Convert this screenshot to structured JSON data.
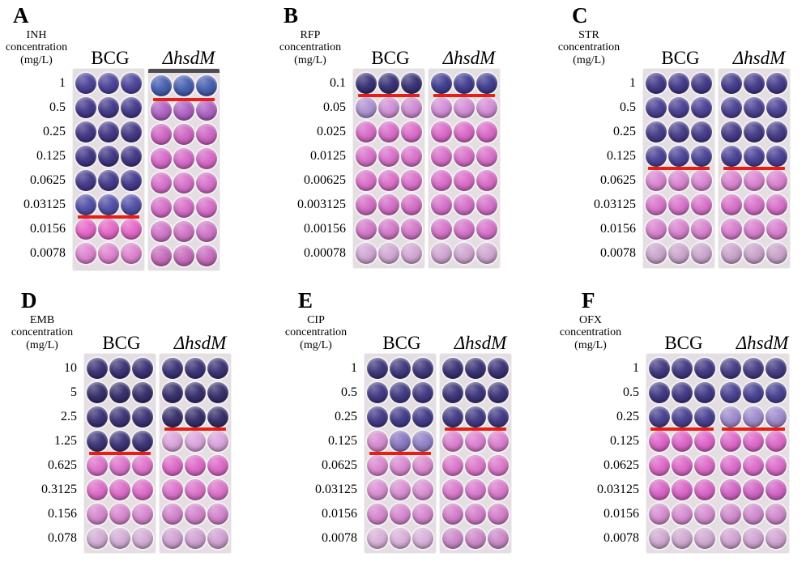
{
  "figure": {
    "type": "microplate-mic-assay",
    "strain_header_left": "BCG",
    "strain_header_right": "ΔhsdM",
    "colors": {
      "mic_line": "#e81d15",
      "plate_background": "#e4dee3",
      "page_background": "#ffffff",
      "text": "#000000",
      "well_rim": "#f2eef1"
    },
    "rows_per_plate": 8,
    "wells_per_row_per_strain": 3
  },
  "panels": [
    {
      "letter": "A",
      "drug": "INH",
      "label_lines": [
        "INH",
        "concentration",
        "(mg/L)"
      ],
      "concentrations": [
        "1",
        "0.5",
        "0.25",
        "0.125",
        "0.0625",
        "0.03125",
        "0.0156",
        "0.0078"
      ],
      "single_plate": false,
      "strains": [
        {
          "name": "BCG",
          "italic": false,
          "mic_line_after_row": 6,
          "rows": [
            "#453c96",
            "#3e3287",
            "#3c2f82",
            "#3a2e80",
            "#3e3388",
            "#4b49a4",
            "#e361c4",
            "#dd7ecd"
          ]
        },
        {
          "name": "ΔhsdM",
          "italic": true,
          "mic_line_after_row": 1,
          "dark_top_edge": true,
          "rows": [
            "#3f58ac",
            "#ac5cc0",
            "#cd5fc0",
            "#d563c6",
            "#d56ac8",
            "#d568c6",
            "#ce6fc4",
            "#c566ba"
          ]
        }
      ]
    },
    {
      "letter": "B",
      "drug": "RFP",
      "label_lines": [
        "RFP",
        "concentration",
        "(mg/L)"
      ],
      "concentrations": [
        "0.1",
        "0.05",
        "0.025",
        "0.0125",
        "0.00625",
        "0.003125",
        "0.00156",
        "0.00078"
      ],
      "single_plate": false,
      "strains": [
        {
          "name": "BCG",
          "italic": false,
          "mic_line_after_row": 1,
          "rows": [
            "#2f296f",
            [
              "#a98fd0",
              "#cd8bd2",
              "#cc87d0"
            ],
            "#d766c6",
            "#d76cc8",
            "#d96ac7",
            "#d268c4",
            "#d173c6",
            "#cfa3d2"
          ]
        },
        {
          "name": "ΔhsdM",
          "italic": true,
          "mic_line_after_row": 1,
          "rows": [
            "#39368c",
            "#d189d4",
            "#d863c5",
            "#d76ac7",
            "#d867c6",
            "#d46bc7",
            "#d46ec8",
            "#cda2cf"
          ]
        }
      ]
    },
    {
      "letter": "C",
      "drug": "STR",
      "label_lines": [
        "STR",
        "concentration",
        "(mg/L)"
      ],
      "concentrations": [
        "1",
        "0.5",
        "0.25",
        "0.125",
        "0.0625",
        "0.03125",
        "0.0156",
        "0.0078"
      ],
      "single_plate": false,
      "strains": [
        {
          "name": "BCG",
          "italic": false,
          "mic_line_after_row": 4,
          "rows": [
            "#3b3284",
            "#443a90",
            "#3f3485",
            "#443c93",
            "#d881cf",
            "#d66ec8",
            "#d67dcc",
            "#c8a2ca"
          ]
        },
        {
          "name": "ΔhsdM",
          "italic": true,
          "mic_line_after_row": 4,
          "rows": [
            "#3c3386",
            "#443a8f",
            "#3e3283",
            "#433991",
            "#d87ecd",
            "#d66bc7",
            "#d678ca",
            "#c69fc8"
          ]
        }
      ]
    },
    {
      "letter": "D",
      "drug": "EMB",
      "label_lines": [
        "EMB",
        "concentration",
        "(mg/L)"
      ],
      "concentrations": [
        "10",
        "5",
        "2.5",
        "1.25",
        "0.625",
        "0.3125",
        "0.156",
        "0.078"
      ],
      "single_plate": false,
      "strains": [
        {
          "name": "BCG",
          "italic": false,
          "mic_line_after_row": 4,
          "rows": [
            "#322a6f",
            "#2e2765",
            "#332b70",
            "#342c72",
            "#db6dc8",
            "#db66c5",
            "#d482cc",
            "#d1aad3"
          ]
        },
        {
          "name": "ΔhsdM",
          "italic": true,
          "mic_line_after_row": 3,
          "rows": [
            "#332b70",
            "#2f2767",
            "#2e2664",
            "#d8a0da",
            "#db63c5",
            "#da6dc8",
            "#d17eca",
            "#ce9dd0"
          ]
        }
      ]
    },
    {
      "letter": "E",
      "drug": "CIP",
      "label_lines": [
        "CIP",
        "concentration",
        "(mg/L)"
      ],
      "concentrations": [
        "1",
        "0.5",
        "0.25",
        "0.125",
        "0.0625",
        "0.03125",
        "0.0156",
        "0.0078"
      ],
      "single_plate": false,
      "strains": [
        {
          "name": "BCG",
          "italic": false,
          "mic_line_after_row": 4,
          "rows": [
            "#373077",
            "#39327e",
            "#3b3384",
            [
              "#d488ce",
              "#8472bd",
              "#8d7cc5"
            ],
            "#d884ce",
            "#d78ad0",
            "#d282cc",
            "#d7add7"
          ]
        },
        {
          "name": "ΔhsdM",
          "italic": true,
          "mic_line_after_row": 3,
          "rows": [
            "#322a6e",
            "#352d74",
            "#3a3280",
            "#da7bcc",
            "#db72c9",
            "#d775ca",
            "#d178c8",
            "#ca84c7"
          ]
        }
      ]
    },
    {
      "letter": "F",
      "drug": "OFX",
      "label_lines": [
        "OFX",
        "concentration",
        "(mg/L)"
      ],
      "concentrations": [
        "1",
        "0.5",
        "0.25",
        "0.125",
        "0.0625",
        "0.03125",
        "0.0156",
        "0.0078"
      ],
      "single_plate": true,
      "strains": [
        {
          "name": "BCG",
          "italic": false,
          "mic_line_after_row": 3,
          "rows": [
            "#3a317d",
            "#393080",
            "#41398c",
            "#db5ec4",
            "#db62c5",
            "#d85ec3",
            "#d388ce",
            "#cea5cf"
          ]
        },
        {
          "name": "ΔhsdM",
          "italic": true,
          "mic_line_after_row": 3,
          "rows": [
            "#3d347e",
            "#413a8d",
            "#9a86ca",
            "#db62c6",
            "#d966c7",
            "#d05fc2",
            "#ce85cb",
            "#ce9fcf"
          ]
        }
      ]
    }
  ]
}
